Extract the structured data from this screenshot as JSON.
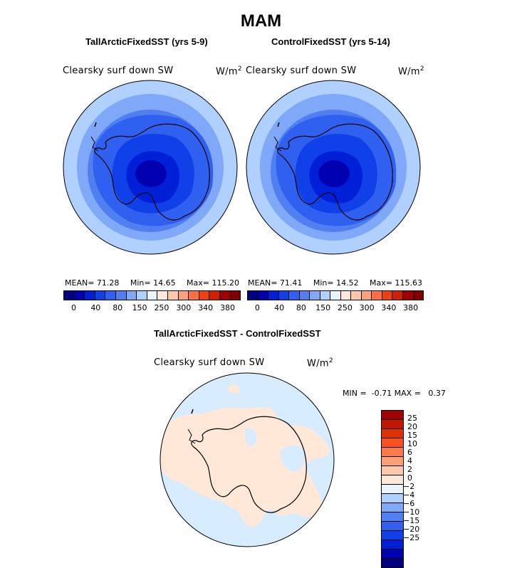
{
  "title": "MAM",
  "panel_left": {
    "subtitle": "TallArcticFixedSST (yrs 5-9)",
    "variable": "Clearsky surf down SW",
    "units_base": "W/m",
    "units_exp": "2",
    "stats": {
      "mean_label": "MEAN=",
      "mean": "71.28",
      "min_label": "Min=",
      "min": "14.65",
      "max_label": "Max=",
      "max": "115.20"
    }
  },
  "panel_right": {
    "subtitle": "ControlFixedSST (yrs 5-14)",
    "variable": "Clearsky surf down SW",
    "units_base": "W/m",
    "units_exp": "2",
    "stats": {
      "mean_label": "MEAN=",
      "mean": "71.41",
      "min_label": "Min=",
      "min": "14.52",
      "max_label": "Max=",
      "max": "115.63"
    }
  },
  "abs_colorbar": {
    "colors": [
      "#000080",
      "#0000b0",
      "#0020d8",
      "#1040e8",
      "#3060f0",
      "#5080f0",
      "#80a8f8",
      "#b0d0ff",
      "#e8f4ff",
      "#ffe8d8",
      "#ffc8a8",
      "#ffa078",
      "#ff7040",
      "#f04010",
      "#d02000",
      "#a00000",
      "#800000"
    ],
    "tick_labels": [
      "0",
      "40",
      "80",
      "150",
      "250",
      "300",
      "340",
      "380"
    ]
  },
  "panel_diff": {
    "subtitle": "TallArcticFixedSST - ControlFixedSST",
    "variable": "Clearsky surf down SW",
    "units_base": "W/m",
    "units_exp": "2",
    "minmax": {
      "min_label": "MIN =",
      "min": "-0.71",
      "max_label": "MAX =",
      "max": "0.37"
    }
  },
  "diff_colorbar": {
    "colors": [
      "#a00000",
      "#c01800",
      "#e03000",
      "#f85020",
      "#ff7848",
      "#ffa078",
      "#ffc8a8",
      "#ffe8d8",
      "#e8f4ff",
      "#b0d0ff",
      "#80a8f8",
      "#5080f0",
      "#3060f0",
      "#1040e8",
      "#0020d8",
      "#0000b0",
      "#000080"
    ],
    "tick_labels": [
      "25",
      "20",
      "15",
      "10",
      "6",
      "4",
      "2",
      "0",
      "-2",
      "-4",
      "-6",
      "-10",
      "-15",
      "-20",
      "-25"
    ]
  }
}
